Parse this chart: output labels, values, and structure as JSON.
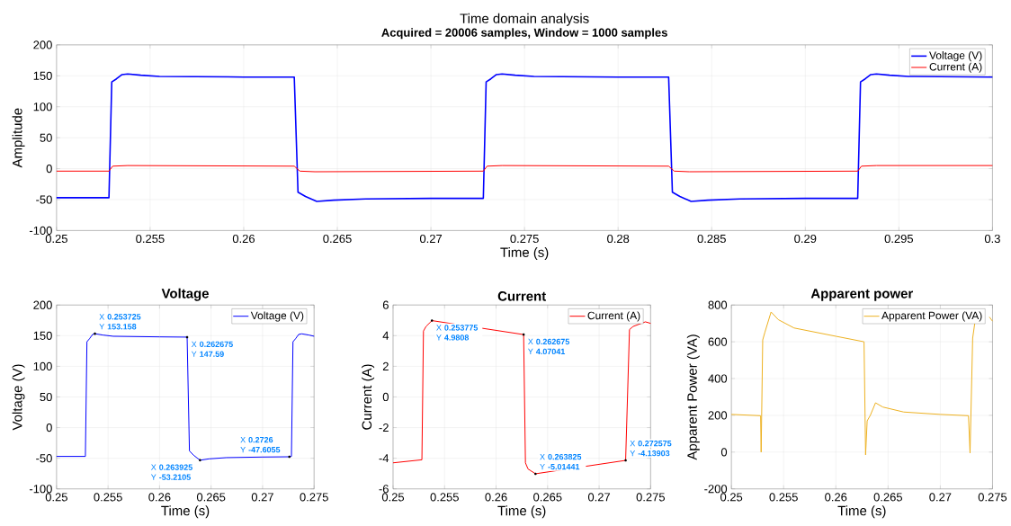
{
  "chart_data": [
    {
      "type": "line",
      "title": "Time domain analysis",
      "subtitle": "Acquired = 20006 samples, Window = 1000 samples",
      "xlabel": "Time (s)",
      "ylabel": "Amplitude",
      "xlim": [
        0.25,
        0.3
      ],
      "xticks": [
        0.25,
        0.255,
        0.26,
        0.265,
        0.27,
        0.275,
        0.28,
        0.285,
        0.29,
        0.295,
        0.3
      ],
      "ylim": [
        -100,
        200
      ],
      "yticks": [
        -100,
        -50,
        0,
        50,
        100,
        150,
        200
      ],
      "grid": true,
      "legend": "top right",
      "series": [
        {
          "name": "Voltage (V)",
          "color": "#0000ff",
          "x": [
            0.25,
            0.2528,
            0.25295,
            0.2532,
            0.2535,
            0.2538,
            0.2545,
            0.2555,
            0.26,
            0.2627,
            0.2629,
            0.2633,
            0.2639,
            0.2648,
            0.2665,
            0.27,
            0.2728,
            0.27295,
            0.2732,
            0.2735,
            0.2738,
            0.2745,
            0.2755,
            0.28,
            0.2827,
            0.2829,
            0.2833,
            0.2839,
            0.2848,
            0.2865,
            0.29,
            0.2928,
            0.29295,
            0.2932,
            0.2935,
            0.2938,
            0.2945,
            0.2955,
            0.3
          ],
          "values": [
            -47,
            -47,
            140,
            145,
            152,
            153,
            151,
            149,
            148,
            148,
            -38,
            -45,
            -53,
            -51,
            -49,
            -48,
            -48,
            140,
            145,
            152,
            153,
            151,
            149,
            148,
            148,
            -38,
            -45,
            -53,
            -51,
            -49,
            -48,
            -48,
            140,
            145,
            152,
            153,
            151,
            149,
            148
          ]
        },
        {
          "name": "Current (A)",
          "color": "#ff0000",
          "x": [
            0.25,
            0.2528,
            0.253,
            0.2538,
            0.2627,
            0.263,
            0.2638,
            0.2728,
            0.273,
            0.2738,
            0.2827,
            0.283,
            0.2838,
            0.2928,
            0.293,
            0.2938,
            0.3
          ],
          "values": [
            -4,
            -4,
            4,
            5,
            4,
            -4,
            -5,
            -4,
            4,
            5,
            4,
            -4,
            -5,
            -4,
            4,
            5,
            5
          ]
        }
      ]
    },
    {
      "type": "line",
      "title": "Voltage",
      "xlabel": "Time (s)",
      "ylabel": "Voltage (V)",
      "xlim": [
        0.25,
        0.275
      ],
      "xticks": [
        0.25,
        0.255,
        0.26,
        0.265,
        0.27,
        0.275
      ],
      "ylim": [
        -100,
        200
      ],
      "yticks": [
        -100,
        -50,
        0,
        50,
        100,
        150,
        200
      ],
      "grid": true,
      "legend": "top right",
      "series": [
        {
          "name": "Voltage (V)",
          "color": "#0000ff",
          "x": [
            0.25,
            0.2528,
            0.25295,
            0.2532,
            0.2535,
            0.253725,
            0.2545,
            0.2555,
            0.26,
            0.262675,
            0.2629,
            0.2633,
            0.263925,
            0.2648,
            0.2665,
            0.27,
            0.2726,
            0.2728,
            0.27295,
            0.2732,
            0.2735,
            0.2738,
            0.2745,
            0.275
          ],
          "values": [
            -47,
            -47,
            140,
            145,
            152,
            153.158,
            151,
            149,
            148,
            147.59,
            -38,
            -45,
            -53.2105,
            -51,
            -49,
            -48,
            -47.6055,
            -47,
            140,
            145,
            152,
            153,
            151,
            149
          ]
        }
      ],
      "annotations": [
        {
          "text": "X **0.253725**",
          "x": 0.253725,
          "y": 153.158
        },
        {
          "text": "Y **153.158**",
          "x": 0.253725,
          "y": 153.158
        },
        {
          "text": "X **0.262675**",
          "x": 0.262675,
          "y": 147.59
        },
        {
          "text": "Y **147.59**",
          "x": 0.262675,
          "y": 147.59
        },
        {
          "text": "X **0.263925**",
          "x": 0.263925,
          "y": -53.2105
        },
        {
          "text": "Y **-53.2105**",
          "x": 0.263925,
          "y": -53.2105
        },
        {
          "text": "X **0.2726**",
          "x": 0.2726,
          "y": -47.6055
        },
        {
          "text": "Y **-47.6055**",
          "x": 0.2726,
          "y": -47.6055
        }
      ]
    },
    {
      "type": "line",
      "title": "Current",
      "xlabel": "Time (s)",
      "ylabel": "Current (A)",
      "xlim": [
        0.25,
        0.275
      ],
      "xticks": [
        0.25,
        0.255,
        0.26,
        0.265,
        0.27,
        0.275
      ],
      "ylim": [
        -6,
        6
      ],
      "yticks": [
        -6,
        -4,
        -2,
        0,
        2,
        4,
        6
      ],
      "grid": true,
      "legend": "top right",
      "series": [
        {
          "name": "Current (A)",
          "color": "#ff0000",
          "x": [
            0.25,
            0.2528,
            0.25295,
            0.2532,
            0.253775,
            0.262675,
            0.26285,
            0.2631,
            0.263825,
            0.272575,
            0.27295,
            0.2733,
            0.2745,
            0.275
          ],
          "values": [
            -4.3,
            -4.1,
            4.3,
            4.6,
            4.9808,
            4.07041,
            -4.3,
            -4.7,
            -5.01441,
            -4.13903,
            4.4,
            4.6,
            4.9,
            4.8
          ]
        }
      ],
      "annotations": [
        {
          "text": "X **0.253775**",
          "x": 0.253775,
          "y": 4.9808
        },
        {
          "text": "Y **4.9808**",
          "x": 0.253775,
          "y": 4.9808
        },
        {
          "text": "X **0.262675**",
          "x": 0.262675,
          "y": 4.07041
        },
        {
          "text": "Y **4.07041**",
          "x": 0.262675,
          "y": 4.07041
        },
        {
          "text": "X **0.263825**",
          "x": 0.263825,
          "y": -5.01441
        },
        {
          "text": "Y **-5.01441**",
          "x": 0.263825,
          "y": -5.01441
        },
        {
          "text": "X **0.272575**",
          "x": 0.272575,
          "y": -4.13903
        },
        {
          "text": "Y **-4.13903**",
          "x": 0.272575,
          "y": -4.13903
        }
      ]
    },
    {
      "type": "line",
      "title": "Apparent power",
      "xlabel": "Time (s)",
      "ylabel": "Apparent Power (VA)",
      "xlim": [
        0.25,
        0.275
      ],
      "xticks": [
        0.25,
        0.255,
        0.26,
        0.265,
        0.27,
        0.275
      ],
      "ylim": [
        -200,
        800
      ],
      "yticks": [
        -200,
        0,
        200,
        400,
        600,
        800
      ],
      "grid": true,
      "legend": "top right",
      "series": [
        {
          "name": "Apparent Power (VA)",
          "color": "#edb120",
          "x": [
            0.25,
            0.2528,
            0.25285,
            0.253,
            0.2532,
            0.2538,
            0.2545,
            0.256,
            0.26,
            0.2627,
            0.26285,
            0.263,
            0.2633,
            0.2638,
            0.2645,
            0.2665,
            0.27,
            0.2727,
            0.27285,
            0.2731,
            0.2733,
            0.2738,
            0.2747,
            0.275
          ],
          "values": [
            205,
            198,
            0,
            610,
            650,
            762,
            720,
            675,
            630,
            600,
            -15,
            170,
            200,
            268,
            245,
            218,
            205,
            198,
            -5,
            620,
            700,
            null,
            735,
            712
          ]
        }
      ]
    }
  ]
}
